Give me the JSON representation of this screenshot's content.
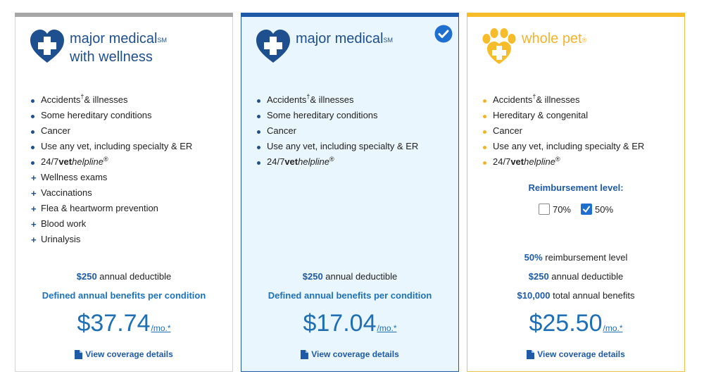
{
  "plans": [
    {
      "id": "wellness",
      "name_line1": "major medical",
      "name_line2": "with wellness",
      "name_mark": "SM",
      "features": [
        {
          "text": "Accidents",
          "dagger": "†",
          "suffix": " & illnesses",
          "bullet": "dot"
        },
        {
          "text": "Some hereditary conditions",
          "bullet": "dot"
        },
        {
          "text": "Cancer",
          "bullet": "dot"
        },
        {
          "text": "Use any vet, including specialty & ER",
          "bullet": "dot"
        },
        {
          "prefix": "24/7 ",
          "bold": "vet",
          "italic": "helpline",
          "reg": "®",
          "bullet": "dot"
        },
        {
          "text": "Wellness exams",
          "bullet": "plus"
        },
        {
          "text": "Vaccinations",
          "bullet": "plus"
        },
        {
          "text": "Flea & heartworm prevention",
          "bullet": "plus"
        },
        {
          "text": "Blood work",
          "bullet": "plus"
        },
        {
          "text": "Urinalysis",
          "bullet": "plus"
        }
      ],
      "deductible_amount": "$250",
      "deductible_label": " annual deductible",
      "benefits_text": "Defined annual benefits per condition",
      "price": "$37.74",
      "per": "/mo.*",
      "link_label": "View coverage details",
      "accent": "#a7a7a7"
    },
    {
      "id": "major",
      "name_line1": "major medical",
      "name_mark": "SM",
      "selected": true,
      "features": [
        {
          "text": "Accidents",
          "dagger": "†",
          "suffix": " & illnesses",
          "bullet": "dot"
        },
        {
          "text": "Some hereditary conditions",
          "bullet": "dot"
        },
        {
          "text": "Cancer",
          "bullet": "dot"
        },
        {
          "text": "Use any vet, including specialty & ER",
          "bullet": "dot"
        },
        {
          "prefix": "24/7 ",
          "bold": "vet",
          "italic": "helpline",
          "reg": "®",
          "bullet": "dot"
        }
      ],
      "deductible_amount": "$250",
      "deductible_label": " annual deductible",
      "benefits_text": "Defined annual benefits per condition",
      "price": "$17.04",
      "per": "/mo.*",
      "link_label": "View coverage details",
      "accent": "#1e5aa8"
    },
    {
      "id": "whole",
      "name_line1": "whole pet",
      "name_mark": "®",
      "features": [
        {
          "text": "Accidents",
          "dagger": "†",
          "suffix": " & illnesses",
          "bullet": "dot"
        },
        {
          "text": "Hereditary & congenital",
          "bullet": "dot"
        },
        {
          "text": "Cancer",
          "bullet": "dot"
        },
        {
          "text": "Use any vet, including specialty & ER",
          "bullet": "dot"
        },
        {
          "prefix": "24/7 ",
          "bold": "vet",
          "italic": "helpline",
          "reg": "®",
          "bullet": "dot"
        }
      ],
      "reimbursement_title": "Reimbursement level:",
      "reimbursement_options": [
        {
          "label": "70%",
          "checked": false
        },
        {
          "label": "50%",
          "checked": true
        }
      ],
      "reimb_amount": "50%",
      "reimb_label": " reimbursement level",
      "deductible_amount": "$250",
      "deductible_label": " annual deductible",
      "total_amount": "$10,000",
      "total_label": " total annual benefits",
      "price": "$25.50",
      "per": "/mo.*",
      "link_label": "View coverage details",
      "accent": "#f7bc2a"
    }
  ]
}
